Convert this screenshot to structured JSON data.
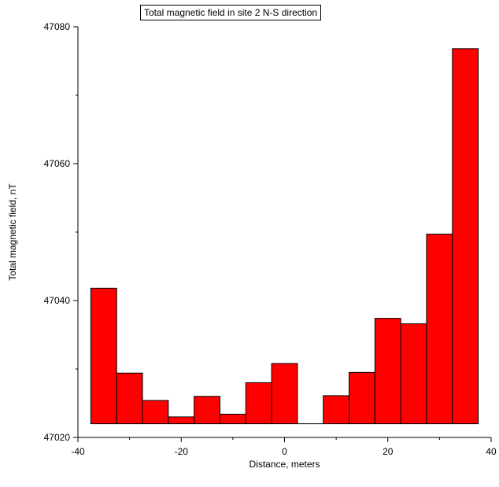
{
  "chart_data": {
    "type": "bar",
    "title": "Total magnetic field in site 2 N-S direction",
    "xlabel": "Distance, meters",
    "ylabel": "Total magnetic field, nT",
    "xlim": [
      -40,
      40
    ],
    "ylim": [
      47020,
      47080
    ],
    "baseline": 47022,
    "xticks": [
      "-40",
      "-20",
      "0",
      "20",
      "40"
    ],
    "yticks": [
      "47020",
      "47040",
      "47060",
      "47080"
    ],
    "bin_width": 5,
    "x": [
      -35,
      -30,
      -25,
      -20,
      -15,
      -10,
      -5,
      0,
      5,
      10,
      15,
      20,
      25,
      30,
      35
    ],
    "values": [
      47041.8,
      47029.4,
      47025.4,
      47023,
      47026,
      47023.4,
      47028,
      47030.8,
      47022,
      47026.1,
      47029.5,
      47037.4,
      47036.6,
      47049.7,
      47076.8
    ],
    "bar_color": "#ff0000",
    "grid": false
  }
}
